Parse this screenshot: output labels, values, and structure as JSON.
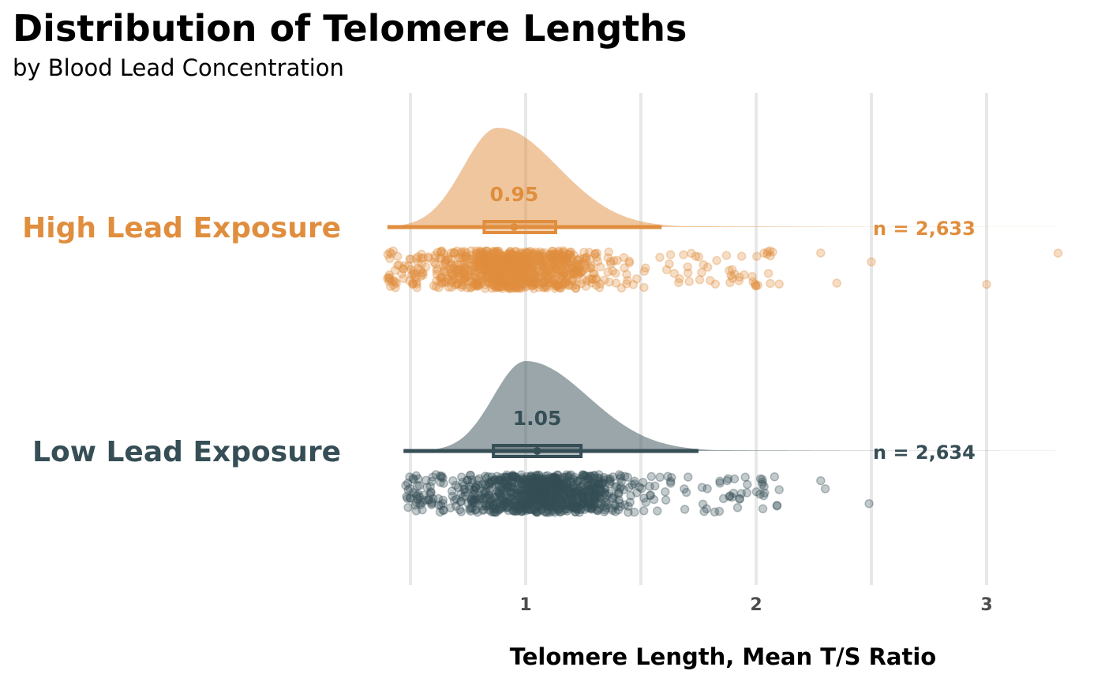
{
  "chart_data": {
    "type": "raincloud",
    "title": "Distribution of Telomere Lengths",
    "subtitle": "by Blood Lead Concentration",
    "xlabel": "Telomere Length, Mean T/S Ratio",
    "xlim": [
      0.5,
      3.3
    ],
    "xticks": [
      1,
      2,
      3
    ],
    "xtick_labels": [
      "1",
      "2",
      "3"
    ],
    "minor_gridlines": [
      0.5,
      1.5,
      2.5
    ],
    "grid": "vertical-only",
    "groups": [
      {
        "label": "High Lead Exposure",
        "color": "#E08E3E",
        "median": 0.95,
        "median_label": "0.95",
        "n_label": "n = 2,633",
        "box": {
          "q1": 0.82,
          "median": 0.95,
          "q3": 1.13
        },
        "whiskers": [
          0.4,
          1.59
        ],
        "density": {
          "mode": 0.88,
          "sd_left": 0.15,
          "sd_right": 0.26
        },
        "extreme_points": [
          2.5,
          3.0,
          3.31,
          2.35,
          2.28,
          2.1,
          2.0
        ]
      },
      {
        "label": "Low Lead Exposure",
        "color": "#364E55",
        "median": 1.05,
        "median_label": "1.05",
        "n_label": "n = 2,634",
        "box": {
          "q1": 0.86,
          "median": 1.05,
          "q3": 1.24
        },
        "whiskers": [
          0.47,
          1.75
        ],
        "density": {
          "mode": 1.0,
          "sd_left": 0.14,
          "sd_right": 0.27
        },
        "extreme_points": [
          2.49,
          2.3,
          2.28,
          2.1,
          2.09,
          1.96
        ]
      }
    ]
  }
}
